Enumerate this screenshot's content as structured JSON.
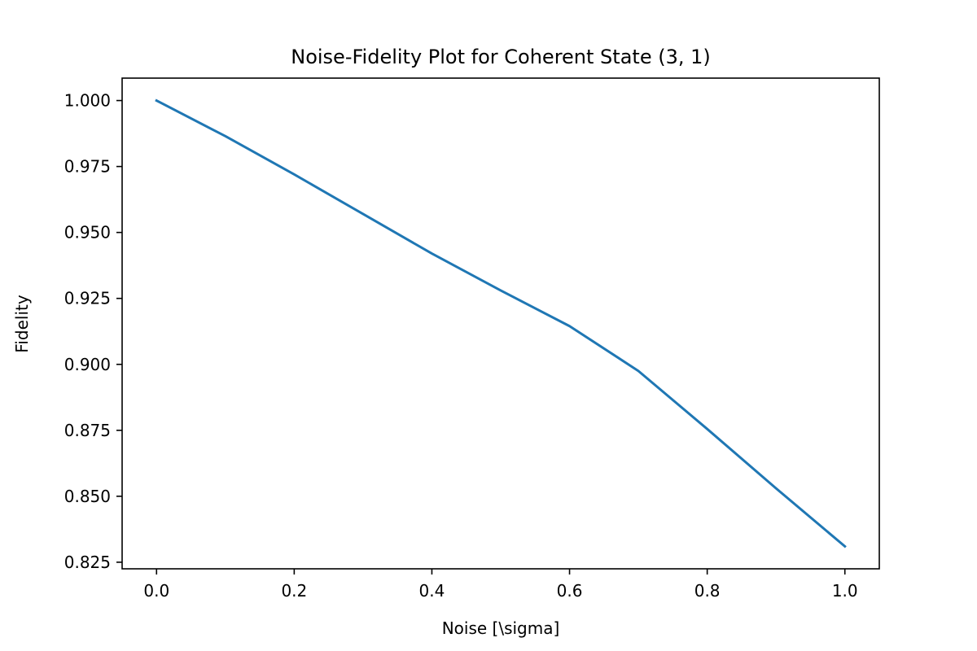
{
  "chart_data": {
    "type": "line",
    "title": "Noise-Fidelity Plot for Coherent State (3, 1)",
    "xlabel": "Noise [\\sigma]",
    "ylabel": "Fidelity",
    "xlim": [
      -0.05,
      1.05
    ],
    "ylim": [
      0.8225,
      1.0085
    ],
    "x_ticks": [
      0.0,
      0.2,
      0.4,
      0.6,
      0.8,
      1.0
    ],
    "x_tick_labels": [
      "0.0",
      "0.2",
      "0.4",
      "0.6",
      "0.8",
      "1.0"
    ],
    "y_ticks": [
      0.825,
      0.85,
      0.875,
      0.9,
      0.925,
      0.95,
      0.975,
      1.0
    ],
    "y_tick_labels": [
      "0.825",
      "0.850",
      "0.875",
      "0.900",
      "0.925",
      "0.950",
      "0.975",
      "1.000"
    ],
    "grid": false,
    "series": [
      {
        "color": "#1f77b4",
        "x": [
          0.0,
          0.1,
          0.2,
          0.3,
          0.4,
          0.5,
          0.6,
          0.7,
          0.8,
          0.9,
          1.0
        ],
        "y": [
          1.0,
          0.9865,
          0.972,
          0.957,
          0.942,
          0.928,
          0.9145,
          0.8975,
          0.8755,
          0.853,
          0.831
        ]
      }
    ]
  }
}
